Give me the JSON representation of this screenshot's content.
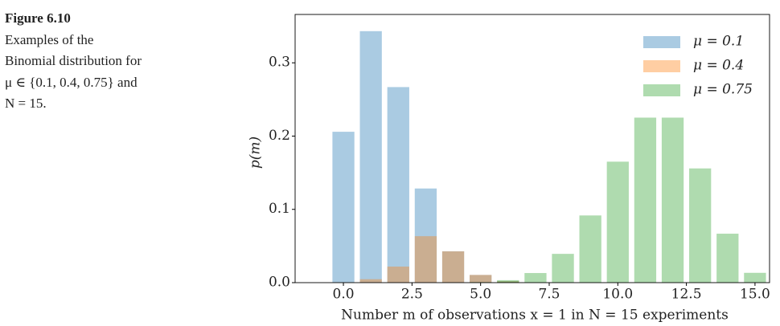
{
  "caption": {
    "label": "Figure 6.10",
    "text": "Examples of the Binomial distribution for μ ∈ {0.1, 0.4, 0.75} and N = 15."
  },
  "chart_data": {
    "type": "bar",
    "xlabel": "Number m of observations x = 1 in N = 15 experiments",
    "ylabel": "p(m)",
    "x": [
      0,
      1,
      2,
      3,
      4,
      5,
      6,
      7,
      8,
      9,
      10,
      11,
      12,
      13,
      14,
      15
    ],
    "bar_width": 0.8,
    "series": [
      {
        "name": "μ = 0.1",
        "color": "#1f77b4",
        "values": [
          0.2059,
          0.3432,
          0.2669,
          0.1285,
          0.0428,
          0.0105,
          0.0019,
          0.0003,
          0.0,
          0.0,
          0.0,
          0.0,
          0.0,
          0.0,
          0.0,
          0.0
        ]
      },
      {
        "name": "μ = 0.4",
        "color": "#ff7f0e",
        "values": [
          0.0005,
          0.0047,
          0.0219,
          0.0634,
          0.0427,
          0.0105,
          0.0019,
          0.0003,
          0.0,
          0.0,
          0.0,
          0.0,
          0.0,
          0.0,
          0.0,
          0.0
        ]
      },
      {
        "name": "μ = 0.75",
        "color": "#2ca02c",
        "values": [
          0.0,
          0.0,
          0.0,
          0.0,
          0.0001,
          0.0007,
          0.0034,
          0.0131,
          0.0393,
          0.0917,
          0.1651,
          0.2252,
          0.2252,
          0.1559,
          0.0668,
          0.0134
        ]
      }
    ],
    "xlim": [
      -1.76,
      15.53
    ],
    "ylim": [
      0,
      0.366
    ],
    "xticks": [
      {
        "value": 0,
        "label": "0.0"
      },
      2.5,
      {
        "value": 5,
        "label": "5.0"
      },
      7.5,
      {
        "value": 10,
        "label": "10.0"
      },
      12.5,
      {
        "value": 15,
        "label": "15.0"
      }
    ],
    "yticks": [
      {
        "value": 0,
        "label": "0.0"
      },
      0.1,
      0.2,
      0.3
    ],
    "legend": "upper right"
  }
}
